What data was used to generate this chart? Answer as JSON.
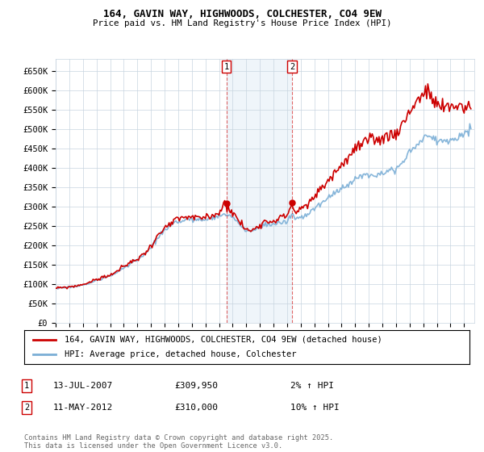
{
  "title1": "164, GAVIN WAY, HIGHWOODS, COLCHESTER, CO4 9EW",
  "title2": "Price paid vs. HM Land Registry's House Price Index (HPI)",
  "legend_line1": "164, GAVIN WAY, HIGHWOODS, COLCHESTER, CO4 9EW (detached house)",
  "legend_line2": "HPI: Average price, detached house, Colchester",
  "annotation1_date": "13-JUL-2007",
  "annotation1_price": "£309,950",
  "annotation1_hpi": "2% ↑ HPI",
  "annotation2_date": "11-MAY-2012",
  "annotation2_price": "£310,000",
  "annotation2_hpi": "10% ↑ HPI",
  "footer": "Contains HM Land Registry data © Crown copyright and database right 2025.\nThis data is licensed under the Open Government Licence v3.0.",
  "red_color": "#cc0000",
  "blue_color": "#7aaed6",
  "background_color": "#ffffff",
  "grid_color": "#c8d4e0",
  "plot_bg_color": "#ffffff",
  "ymin": 0,
  "ymax": 682000,
  "yticks": [
    0,
    50000,
    100000,
    150000,
    200000,
    250000,
    300000,
    350000,
    400000,
    450000,
    500000,
    550000,
    600000,
    650000
  ],
  "ylabels": [
    "£0",
    "£50K",
    "£100K",
    "£150K",
    "£200K",
    "£250K",
    "£300K",
    "£350K",
    "£400K",
    "£450K",
    "£500K",
    "£550K",
    "£600K",
    "£650K"
  ],
  "ann1_x": 2007.54,
  "ann1_y": 309950,
  "ann2_x": 2012.36,
  "ann2_y": 310000,
  "xmin": 1995.0,
  "xmax": 2025.75
}
